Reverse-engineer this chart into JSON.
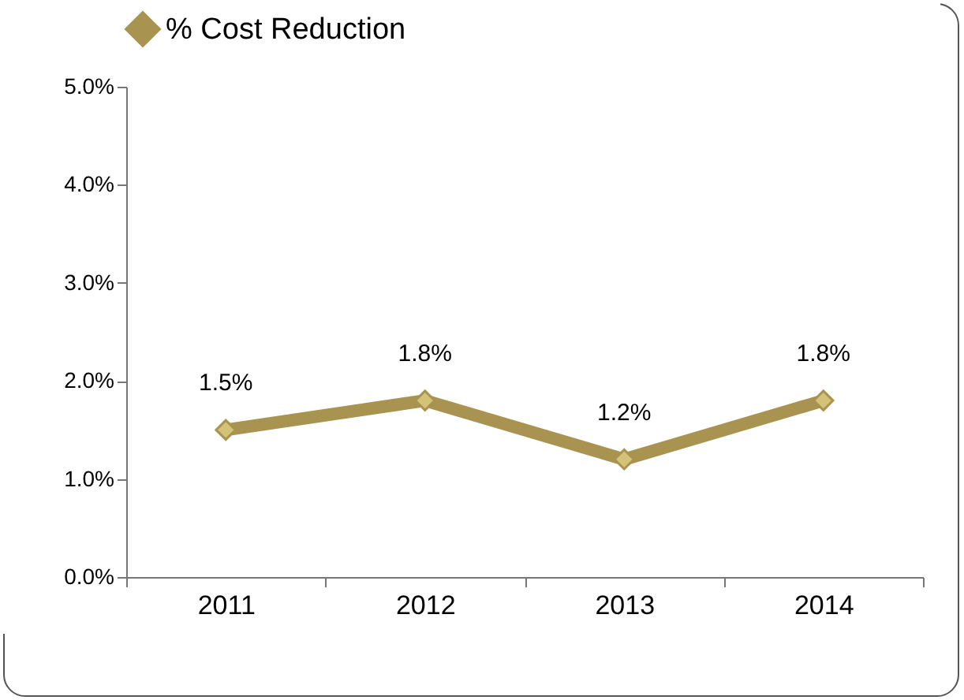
{
  "chart_data": {
    "type": "line",
    "categories": [
      "2011",
      "2012",
      "2013",
      "2014"
    ],
    "series": [
      {
        "name": "% Cost Reduction",
        "color": "#a89450",
        "values": [
          1.5,
          1.8,
          1.2,
          1.8
        ],
        "value_labels": [
          "1.5%",
          "1.8%",
          "1.2%",
          "1.8%"
        ]
      }
    ],
    "ylim": [
      0,
      5
    ],
    "yticks": [
      {
        "value": 0,
        "label": "0.0%"
      },
      {
        "value": 1,
        "label": "1.0%"
      },
      {
        "value": 2,
        "label": "2.0%"
      },
      {
        "value": 3,
        "label": "3.0%"
      },
      {
        "value": 4,
        "label": "4.0%"
      },
      {
        "value": 5,
        "label": "5.0%"
      }
    ],
    "grid": false,
    "legend": "top",
    "marker": "diamond",
    "line_style": "solid"
  }
}
